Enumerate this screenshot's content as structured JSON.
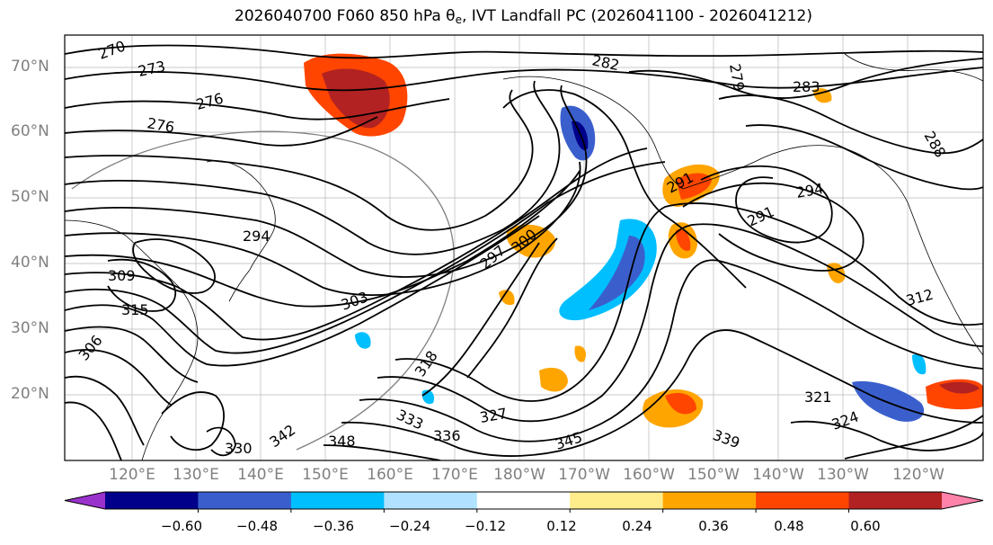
{
  "title": {
    "prefix": "2026040700 F060 850 hPa ",
    "symbol": "θ",
    "symbol_sub": "e",
    "suffix": ", IVT Landfall PC (2026041100 - 2026041212)"
  },
  "map": {
    "lat_labels": [
      "70°N",
      "60°N",
      "50°N",
      "40°N",
      "30°N",
      "20°N"
    ],
    "lon_labels": [
      "120°E",
      "130°E",
      "140°E",
      "150°E",
      "160°E",
      "170°E",
      "180°W",
      "170°W",
      "160°W",
      "150°W",
      "140°W",
      "130°W",
      "120°W"
    ],
    "contour_labels": [
      "270",
      "273",
      "276",
      "276",
      "279",
      "282",
      "283",
      "288",
      "291",
      "291",
      "294",
      "294",
      "297",
      "300",
      "303",
      "306",
      "309",
      "312",
      "315",
      "318",
      "321",
      "324",
      "327",
      "330",
      "333",
      "336",
      "339",
      "342",
      "345",
      "348"
    ]
  },
  "colorbar": {
    "ticks": [
      "−0.60",
      "−0.48",
      "−0.36",
      "−0.24",
      "−0.12",
      "0.12",
      "0.24",
      "0.36",
      "0.48",
      "0.60"
    ],
    "colors": [
      "#9932cc",
      "#00008b",
      "#3a5fcd",
      "#00bfff",
      "#b0e2ff",
      "#ffffff",
      "#ffec8b",
      "#ffa500",
      "#ff4500",
      "#b22222",
      "#ff82ab"
    ]
  }
}
